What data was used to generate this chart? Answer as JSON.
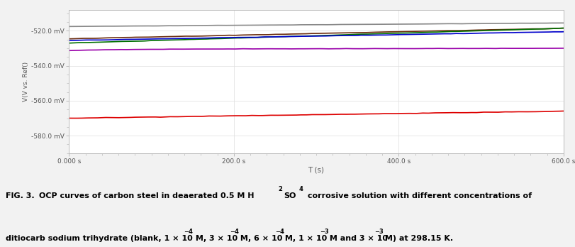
{
  "xlabel": "T (s)",
  "ylabel": "V(V vs. Ref()",
  "xlim": [
    0,
    600
  ],
  "ylim": [
    -0.59,
    -0.508
  ],
  "yticks": [
    -0.58,
    -0.56,
    -0.54,
    -0.52
  ],
  "ytick_labels": [
    "-580.0 mV",
    "-560.0 mV",
    "-540.0 mV",
    "-520.0 mV"
  ],
  "xticks": [
    0,
    200,
    400,
    600
  ],
  "xtick_labels": [
    "0.000 s",
    "200.0 s",
    "400.0 s",
    "600.0 s"
  ],
  "lines": [
    {
      "color": "#888888",
      "start": -0.5175,
      "end": -0.5155,
      "noise_amp": 0.0002
    },
    {
      "color": "#6B2D0E",
      "start": -0.5245,
      "end": -0.5185,
      "noise_amp": 0.0003
    },
    {
      "color": "#007000",
      "start": -0.527,
      "end": -0.5185,
      "noise_amp": 0.0003
    },
    {
      "color": "#0000CC",
      "start": -0.5255,
      "end": -0.5205,
      "noise_amp": 0.0003
    },
    {
      "color": "#9900AA",
      "start": -0.5305,
      "end": -0.53,
      "noise_amp": 0.00025
    },
    {
      "color": "#DD0000",
      "start": -0.57,
      "end": -0.566,
      "noise_amp": 0.0004
    }
  ],
  "background_color": "#f2f2f2",
  "plot_bg_color": "#ffffff",
  "figsize": [
    8.11,
    3.48
  ],
  "dpi": 100,
  "linewidth": 1.2
}
